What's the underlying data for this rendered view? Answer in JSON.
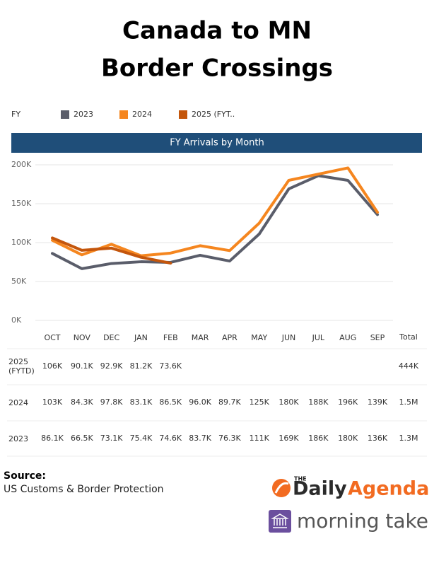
{
  "header": {
    "title_lines": [
      "Canada to MN",
      "Border Crossings"
    ]
  },
  "chart_data": {
    "type": "line",
    "title": "FY Arrivals by Month",
    "legend_title": "FY",
    "categories": [
      "OCT",
      "NOV",
      "DEC",
      "JAN",
      "FEB",
      "MAR",
      "APR",
      "MAY",
      "JUN",
      "JUL",
      "AUG",
      "SEP"
    ],
    "total_header": "Total",
    "series": [
      {
        "name": "2023",
        "table_label": "2023",
        "color": "#5a5d6a",
        "total": "1.3M",
        "values": [
          86100,
          66500,
          73100,
          75400,
          74600,
          83700,
          76300,
          111000,
          169000,
          186000,
          180000,
          136000
        ],
        "value_labels": [
          "86.1K",
          "66.5K",
          "73.1K",
          "75.4K",
          "74.6K",
          "83.7K",
          "76.3K",
          "111K",
          "169K",
          "186K",
          "180K",
          "136K"
        ]
      },
      {
        "name": "2024",
        "table_label": "2024",
        "color": "#f5861f",
        "total": "1.5M",
        "values": [
          103000,
          84300,
          97800,
          83100,
          86500,
          96000,
          89700,
          125000,
          180000,
          188000,
          196000,
          139000
        ],
        "value_labels": [
          "103K",
          "84.3K",
          "97.8K",
          "83.1K",
          "86.5K",
          "96.0K",
          "89.7K",
          "125K",
          "180K",
          "188K",
          "196K",
          "139K"
        ]
      },
      {
        "name": "2025 (FYT..",
        "table_label": "2025 (FYTD)",
        "color": "#c4560c",
        "total": "444K",
        "values": [
          106000,
          90100,
          92900,
          81200,
          73600,
          null,
          null,
          null,
          null,
          null,
          null,
          null
        ],
        "value_labels": [
          "106K",
          "90.1K",
          "92.9K",
          "81.2K",
          "73.6K",
          null,
          null,
          null,
          null,
          null,
          null,
          null
        ]
      }
    ],
    "ylim": [
      0,
      200000
    ],
    "yticks": [
      {
        "value": 0,
        "label": "0K"
      },
      {
        "value": 50000,
        "label": "50K"
      },
      {
        "value": 100000,
        "label": "100K"
      },
      {
        "value": 150000,
        "label": "150K"
      },
      {
        "value": 200000,
        "label": "200K"
      }
    ],
    "grid": true
  },
  "source": {
    "heading": "Source:",
    "text": "US Customs & Border Protection"
  },
  "logos": {
    "the": "THE",
    "daily": "Daily",
    "agenda": "Agenda",
    "morning": "morning take"
  }
}
